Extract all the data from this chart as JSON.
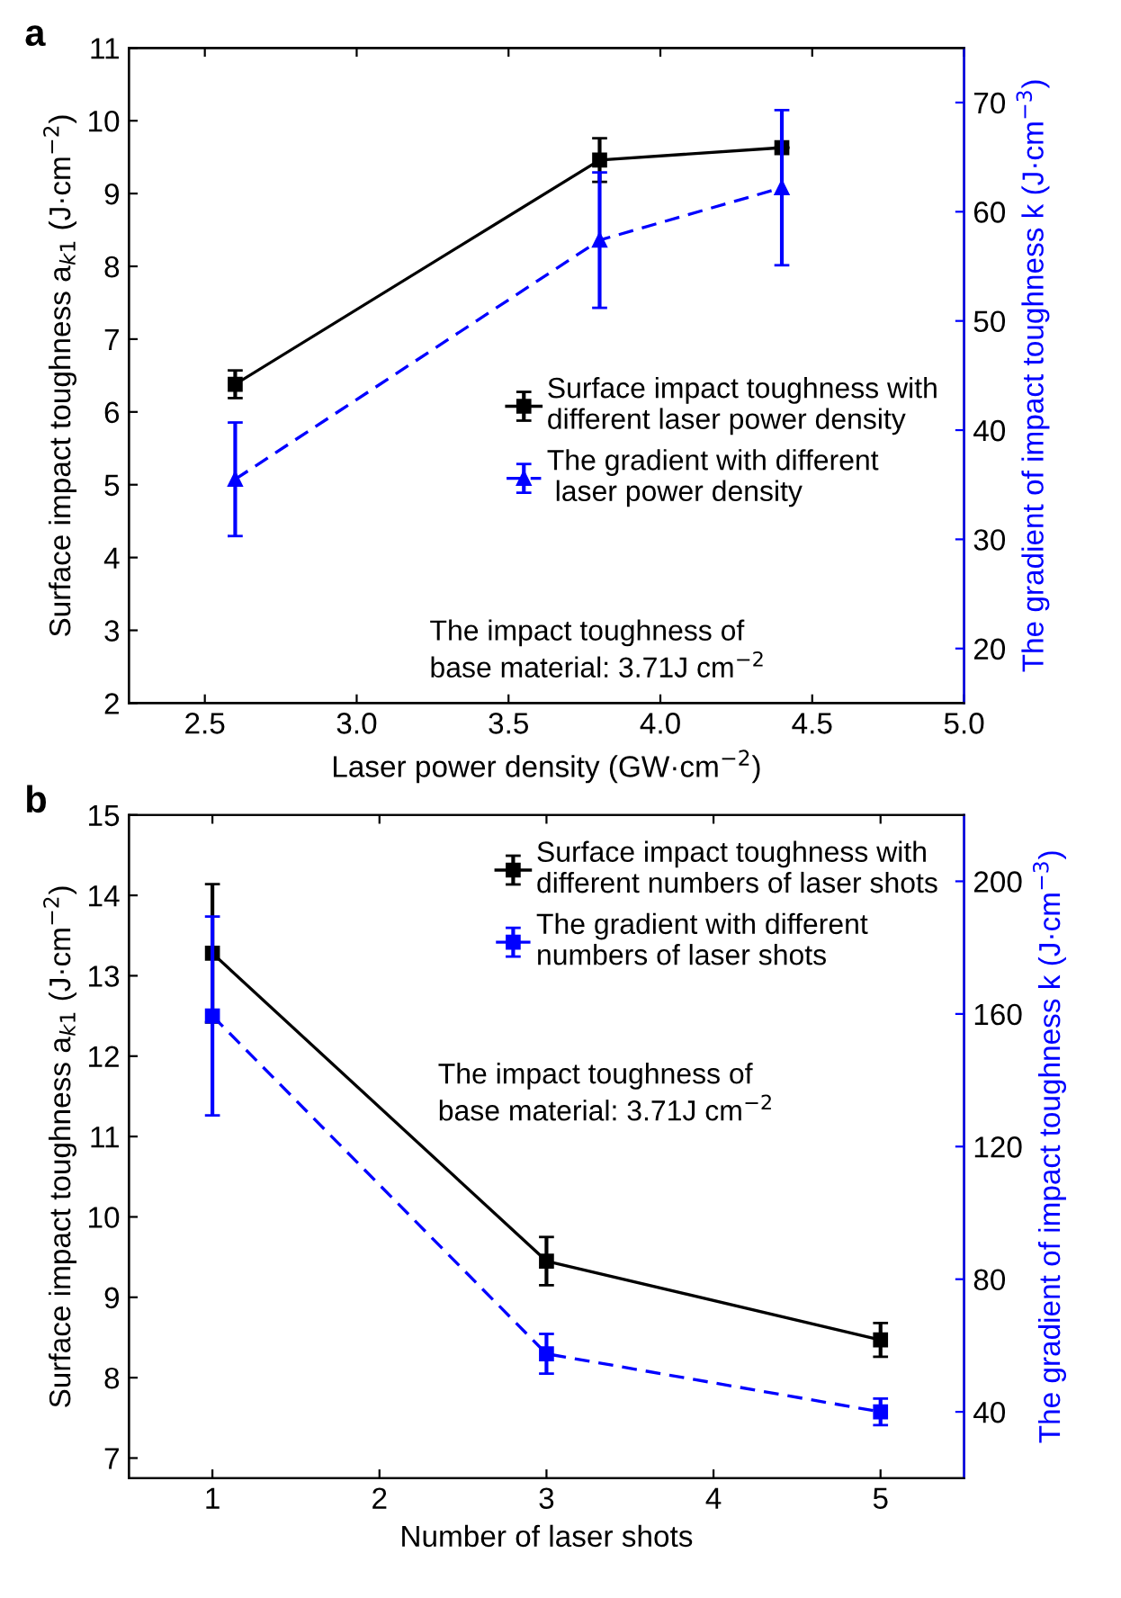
{
  "chart_data": [
    {
      "type": "line",
      "title": "a",
      "xlabel": "Laser power density (GW·cm$^{−2}$)",
      "ylabel": "Surface impact toughness a$_{k1}$ (J·cm$^{−2}$)",
      "y2label": "The gradient of impact toughness k (J·cm$^{−3}$)",
      "x": [
        2.6,
        3.8,
        4.4
      ],
      "xlim": [
        2.25,
        5.0
      ],
      "xticks": [
        {
          "value": 2.5,
          "label": "2.5"
        },
        {
          "value": 3.0,
          "label": "3.0"
        },
        {
          "value": 3.5,
          "label": "3.5"
        },
        {
          "value": 4.0,
          "label": "4.0"
        },
        {
          "value": 4.5,
          "label": "4.5"
        },
        {
          "value": 5.0,
          "label": "5.0"
        }
      ],
      "ylim": [
        2,
        11
      ],
      "yticks": [
        2,
        3,
        4,
        5,
        6,
        7,
        8,
        9,
        10,
        11
      ],
      "y2lim": [
        15,
        75
      ],
      "y2ticks": [
        20,
        30,
        40,
        50,
        60,
        70
      ],
      "legend": "bottom right",
      "annotations": [
        "The impact toughness of\nbase material: 3.71J cm$^{−2}$"
      ],
      "series": [
        {
          "name": "Surface impact toughness with\ndifferent laser power density",
          "color": "#000000",
          "values": [
            6.38,
            9.46,
            9.63
          ],
          "errors": [
            0.19,
            0.3,
            null
          ],
          "marker": "square",
          "line_style": "solid"
        },
        {
          "name": "The gradient with different\n laser power density",
          "color": "#0000ff",
          "axis": "y2",
          "values": [
            35.5,
            57.4,
            62.2
          ],
          "errors": [
            5.2,
            6.2,
            7.1
          ],
          "marker": "triangle",
          "line_style": "dashed"
        }
      ]
    },
    {
      "type": "line",
      "title": "b",
      "xlabel": "Number of laser shots",
      "ylabel": "Surface impact toughness a$_{k1}$ (J·cm$^{−2}$)",
      "y2label": "The gradient of impact toughness k (J·cm$^{−3}$)",
      "x": [
        1,
        3,
        5
      ],
      "xlim": [
        0.5,
        5.5
      ],
      "xticks": [
        1,
        2,
        3,
        4,
        5
      ],
      "ylim": [
        6.75,
        15
      ],
      "yticks": [
        7,
        8,
        9,
        10,
        11,
        12,
        13,
        14,
        15
      ],
      "y2lim": [
        20,
        220
      ],
      "y2ticks": [
        40,
        80,
        120,
        160,
        200
      ],
      "legend": "top right",
      "annotations": [
        "The impact toughness of\nbase material: 3.71J cm$^{−2}$"
      ],
      "series": [
        {
          "name": "Surface impact toughness with\ndifferent numbers of laser shots",
          "color": "#000000",
          "values": [
            13.28,
            9.45,
            8.47
          ],
          "errors": [
            0.86,
            0.3,
            0.21
          ],
          "marker": "square",
          "line_style": "solid"
        },
        {
          "name": "The gradient with different\nnumbers of laser shots",
          "color": "#0000ff",
          "axis": "y2",
          "values": [
            159.4,
            57.5,
            40
          ],
          "errors": [
            30,
            6,
            4
          ],
          "marker": "square",
          "line_style": "dashed"
        }
      ]
    }
  ]
}
